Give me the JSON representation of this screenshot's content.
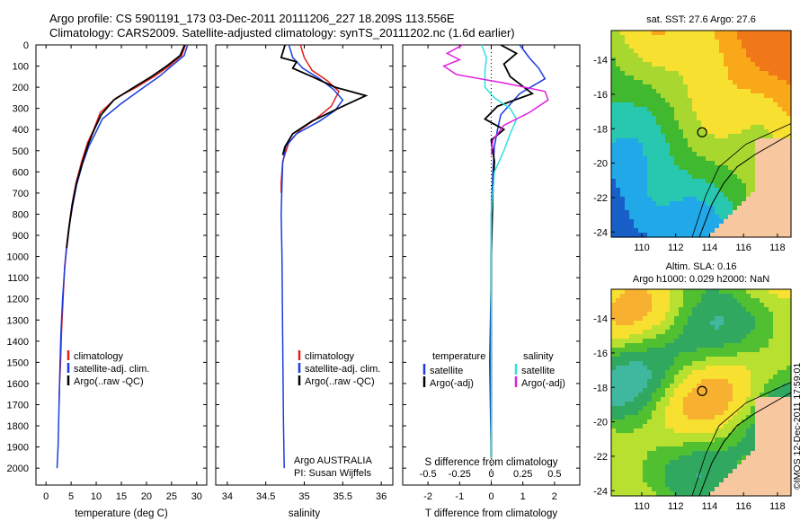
{
  "header": {
    "line1": "Argo profile: CS 5901191_173 03-Dec-2011 20111206_227 18.209S 113.556E",
    "line2": "Climatology: CARS2009. Satellite-adjusted climatology: synTS_20111202.nc (1.6d earlier)"
  },
  "colors": {
    "climatology": "#e0201a",
    "satellite": "#1a3de0",
    "argo": "#000000",
    "salinity_satellite": "#33e0e0",
    "salinity_argo": "#e020e0"
  },
  "chart_data": [
    {
      "type": "line",
      "name_key": "temperature_profile",
      "xlabel": "temperature (deg C)",
      "xticks": [
        0,
        5,
        10,
        15,
        20,
        25,
        30
      ],
      "xlim": [
        -2,
        32
      ],
      "ylim": [
        2080,
        0
      ],
      "yticks": [
        0,
        100,
        200,
        300,
        400,
        500,
        600,
        700,
        800,
        900,
        1000,
        1100,
        1200,
        1300,
        1400,
        1500,
        1600,
        1700,
        1800,
        1900,
        2000
      ],
      "legend": [
        "climatology",
        "satellite-adj. clim.",
        "Argo(..raw -QC)"
      ],
      "series": [
        {
          "name": "climatology",
          "color": "#e0201a",
          "x": [
            27.8,
            27.0,
            24.5,
            21.5,
            18.0,
            14.0,
            10.8,
            9.5,
            8.3,
            7.1,
            6.0,
            5.2,
            4.6,
            4.1,
            3.7,
            3.4,
            3.1,
            2.9,
            2.7,
            2.6
          ],
          "y": [
            0,
            50,
            100,
            150,
            200,
            250,
            320,
            400,
            460,
            550,
            650,
            750,
            850,
            950,
            1050,
            1200,
            1350,
            1500,
            1600,
            1700
          ]
        },
        {
          "name": "satellite-adj. clim.",
          "color": "#1a3de0",
          "x": [
            28.2,
            27.5,
            25.0,
            22.5,
            19.5,
            14.8,
            11.2,
            9.8,
            8.5,
            7.3,
            6.1,
            5.3,
            4.6,
            4.1,
            3.7,
            3.3,
            3.0,
            2.8,
            2.6,
            2.4,
            2.2
          ],
          "y": [
            0,
            50,
            100,
            150,
            200,
            280,
            350,
            420,
            480,
            560,
            660,
            760,
            860,
            960,
            1060,
            1200,
            1350,
            1500,
            1700,
            1900,
            2000
          ]
        },
        {
          "name": "Argo(..raw -QC)",
          "color": "#000000",
          "x": [
            27.6,
            26.7,
            24.0,
            21.0,
            17.5,
            13.5,
            11.0,
            9.6,
            8.4,
            7.2,
            6.0,
            5.2,
            4.6,
            4.1
          ],
          "y": [
            0,
            50,
            100,
            150,
            200,
            260,
            330,
            400,
            470,
            560,
            660,
            760,
            860,
            960
          ]
        }
      ]
    },
    {
      "type": "line",
      "name_key": "salinity_profile",
      "xlabel": "salinity",
      "xticks": [
        34,
        34.5,
        35,
        35.5,
        36
      ],
      "xlim": [
        33.85,
        36.15
      ],
      "ylim": [
        2080,
        0
      ],
      "legend": [
        "climatology",
        "satellite-adj. clim.",
        "Argo(..raw -QC)"
      ],
      "annotation": [
        "Argo AUSTRALIA",
        "PI: Susan Wijffels"
      ],
      "series": [
        {
          "name": "climatology",
          "color": "#e0201a",
          "x": [
            34.95,
            35.0,
            35.1,
            35.3,
            35.45,
            35.35,
            35.15,
            34.95,
            34.8,
            34.72,
            34.7,
            34.7
          ],
          "y": [
            0,
            60,
            120,
            170,
            220,
            290,
            350,
            400,
            460,
            550,
            650,
            700
          ]
        },
        {
          "name": "satellite-adj. clim.",
          "color": "#1a3de0",
          "x": [
            34.8,
            34.85,
            34.98,
            35.2,
            35.38,
            35.5,
            35.4,
            35.2,
            34.9,
            34.76,
            34.72,
            34.71,
            34.7,
            34.71,
            34.72,
            34.73,
            34.74
          ],
          "y": [
            0,
            60,
            110,
            160,
            210,
            260,
            310,
            360,
            420,
            480,
            560,
            660,
            800,
            1000,
            1400,
            1800,
            2000
          ]
        },
        {
          "name": "Argo(..raw -QC)",
          "color": "#000000",
          "x": [
            34.75,
            34.7,
            34.9,
            34.85,
            35.1,
            35.4,
            35.8,
            35.5,
            35.1,
            34.85,
            34.75,
            34.72
          ],
          "y": [
            0,
            60,
            80,
            110,
            150,
            200,
            240,
            290,
            360,
            420,
            480,
            520
          ]
        }
      ]
    },
    {
      "type": "line",
      "name_key": "difference_profile",
      "xlabel_top": "S difference from climatology",
      "xticks_top": [
        -0.5,
        -0.25,
        0,
        0.25,
        0.5
      ],
      "xlabel": "T difference from climatology",
      "xticks": [
        -2,
        -1,
        0,
        1,
        2
      ],
      "xlim": [
        -2.8,
        2.8
      ],
      "ylim": [
        2080,
        0
      ],
      "legend_t_title": "temperature",
      "legend_s_title": "salinity",
      "legend": [
        "satellite",
        "Argo(-adj)",
        "satellite",
        "Argo(-adj)"
      ],
      "series": [
        {
          "name": "temperature satellite",
          "color": "#1a3de0",
          "x": [
            0.9,
            1.2,
            1.5,
            1.7,
            0.9,
            0.3,
            0.2,
            0.1,
            0.05,
            0.0,
            0.0,
            -0.05,
            0.0
          ],
          "y": [
            0,
            60,
            110,
            160,
            230,
            330,
            400,
            480,
            600,
            800,
            1100,
            1500,
            1950
          ]
        },
        {
          "name": "temperature Argo(-adj)",
          "color": "#000000",
          "x": [
            0.3,
            0.8,
            0.4,
            0.6,
            1.3,
            0.2,
            -0.2,
            0.4,
            0.0,
            0.1,
            0.05,
            0.0,
            0.0
          ],
          "y": [
            0,
            40,
            90,
            150,
            230,
            290,
            350,
            400,
            450,
            550,
            700,
            1000,
            1950
          ]
        },
        {
          "name": "salinity satellite",
          "color": "#33e0e0",
          "x": [
            -0.3,
            -0.15,
            -0.2,
            -0.2,
            0.1,
            0.6,
            0.8,
            0.6,
            0.4,
            0.1,
            0.0,
            0.0
          ],
          "y": [
            0,
            60,
            120,
            200,
            250,
            300,
            350,
            420,
            500,
            600,
            800,
            1950
          ]
        },
        {
          "name": "salinity Argo(-adj)",
          "color": "#e020e0",
          "x": [
            -0.9,
            -1.4,
            -1.0,
            -1.5,
            -1.1,
            0.4,
            1.7,
            1.8,
            1.2,
            0.4,
            0.05,
            0.0
          ],
          "y": [
            0,
            40,
            70,
            100,
            140,
            180,
            220,
            260,
            320,
            380,
            450,
            520
          ]
        }
      ]
    },
    {
      "type": "heatmap",
      "name_key": "sst_map",
      "title": "sat. SST: 27.6  Argo: 27.6",
      "xticks": [
        110,
        112,
        114,
        116,
        118
      ],
      "yticks": [
        -14,
        -16,
        -18,
        -20,
        -22,
        -24
      ],
      "xlim": [
        108.2,
        118.8
      ],
      "ylim": [
        -24.3,
        -12.3
      ],
      "marker": {
        "lon": 113.556,
        "lat": -18.209
      }
    },
    {
      "type": "heatmap",
      "name_key": "sla_map",
      "title": "Altim. SLA: 0.16",
      "subtitle": "Argo h1000: 0.029 h2000: NaN",
      "xticks": [
        110,
        112,
        114,
        116,
        118
      ],
      "yticks": [
        -14,
        -16,
        -18,
        -20,
        -22,
        -24
      ],
      "xlim": [
        108.2,
        118.8
      ],
      "ylim": [
        -24.3,
        -12.3
      ],
      "marker": {
        "lon": 113.556,
        "lat": -18.209
      }
    }
  ],
  "stamp": "©IMOS 12-Dec-2011 17:59:01"
}
